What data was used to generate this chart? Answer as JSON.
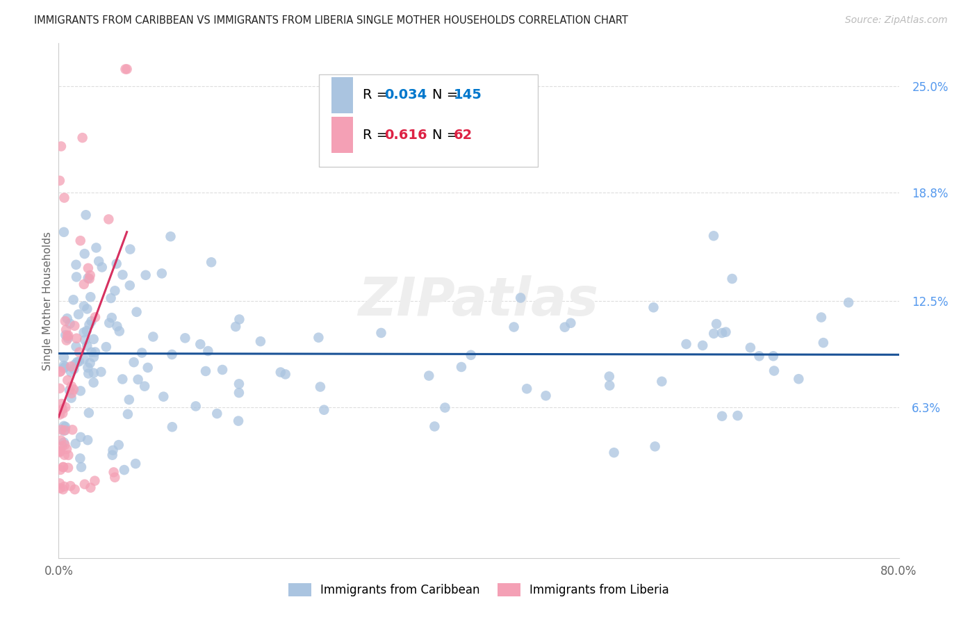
{
  "title": "IMMIGRANTS FROM CARIBBEAN VS IMMIGRANTS FROM LIBERIA SINGLE MOTHER HOUSEHOLDS CORRELATION CHART",
  "source": "Source: ZipAtlas.com",
  "ylabel": "Single Mother Households",
  "xmin": 0.0,
  "xmax": 0.8,
  "ymin": -0.025,
  "ymax": 0.275,
  "caribbean_R": 0.034,
  "caribbean_N": 145,
  "liberia_R": 0.616,
  "liberia_N": 62,
  "caribbean_color": "#aac4e0",
  "caribbean_line_color": "#1a5296",
  "liberia_color": "#f4a0b5",
  "liberia_line_color": "#d63060",
  "watermark": "ZIPatlas",
  "background_color": "#ffffff",
  "grid_color": "#dddddd",
  "title_color": "#222222",
  "source_color": "#bbbbbb",
  "legend_R_color_caribbean": "#0077cc",
  "legend_N_color_caribbean": "#0077cc",
  "legend_R_color_liberia": "#dd2244",
  "legend_N_color_liberia": "#dd2244",
  "ytick_positions": [
    0.0,
    0.063,
    0.125,
    0.188,
    0.25
  ],
  "ytick_labels": [
    "",
    "6.3%",
    "12.5%",
    "18.8%",
    "25.0%"
  ],
  "xtick_positions": [
    0.0,
    0.1,
    0.2,
    0.3,
    0.4,
    0.5,
    0.6,
    0.7,
    0.8
  ],
  "xtick_labels": [
    "0.0%",
    "",
    "",
    "",
    "",
    "",
    "",
    "",
    "80.0%"
  ]
}
